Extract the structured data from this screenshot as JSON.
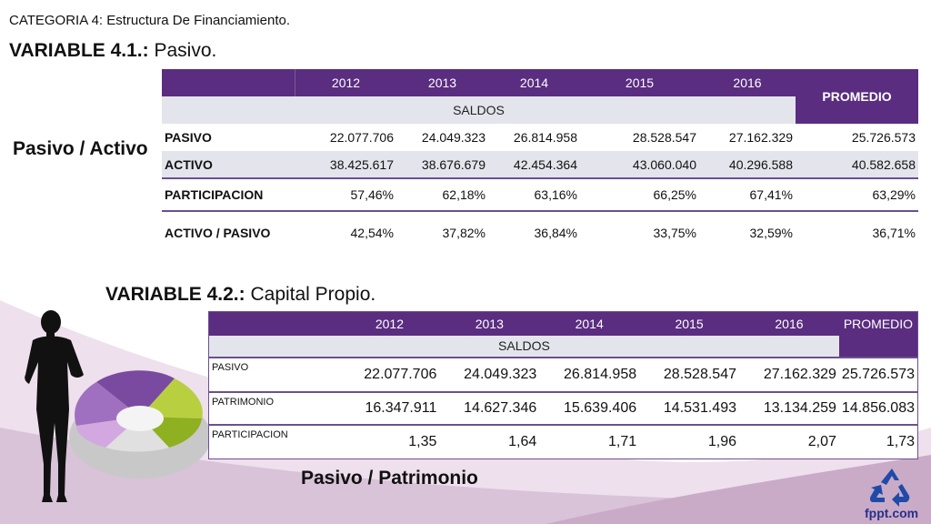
{
  "category": "CATEGORIA 4: Estructura De Financiamiento.",
  "variable1": {
    "label": "VARIABLE 4.1.:",
    "name": " Pasivo."
  },
  "variable2": {
    "label": "VARIABLE 4.2.:",
    "name": " Capital Propio."
  },
  "side_label1": "Pasivo / Activo",
  "side_label2": "Pasivo / Patrimonio",
  "table1": {
    "years": [
      "2012",
      "2013",
      "2014",
      "2015",
      "2016"
    ],
    "promedio": "PROMEDIO",
    "saldos": "SALDOS",
    "rows": [
      {
        "label": "PASIVO",
        "values": [
          "22.077.706",
          "24.049.323",
          "26.814.958",
          "28.528.547",
          "27.162.329",
          "25.726.573"
        ]
      },
      {
        "label": "ACTIVO",
        "values": [
          "38.425.617",
          "38.676.679",
          "42.454.364",
          "43.060.040",
          "40.296.588",
          "40.582.658"
        ]
      },
      {
        "label": "PARTICIPACION",
        "values": [
          "57,46%",
          "62,18%",
          "63,16%",
          "66,25%",
          "67,41%",
          "63,29%"
        ]
      },
      {
        "label": "ACTIVO / PASIVO",
        "values": [
          "42,54%",
          "37,82%",
          "36,84%",
          "33,75%",
          "32,59%",
          "36,71%"
        ]
      }
    ]
  },
  "table2": {
    "years": [
      "2012",
      "2013",
      "2014",
      "2015",
      "2016"
    ],
    "promedio": "PROMEDIO",
    "saldos": "SALDOS",
    "rows": [
      {
        "label": "PASIVO",
        "values": [
          "22.077.706",
          "24.049.323",
          "26.814.958",
          "28.528.547",
          "27.162.329",
          "25.726.573"
        ]
      },
      {
        "label": "PATRIMONIO",
        "values": [
          "16.347.911",
          "14.627.346",
          "15.639.406",
          "14.531.493",
          "13.134.259",
          "14.856.083"
        ]
      },
      {
        "label": "PARTICIPACION",
        "values": [
          "1,35",
          "1,64",
          "1,71",
          "1,96",
          "2,07",
          "1,73"
        ]
      }
    ]
  },
  "brand": "fppt.com",
  "icons": [
    "recycle-icon",
    "businesswoman-silhouette",
    "donut-chart-graphic"
  ],
  "colors": {
    "header": "#5a2d80",
    "row_alt": "#e4e5ec",
    "brand": "#2a2f8a"
  }
}
